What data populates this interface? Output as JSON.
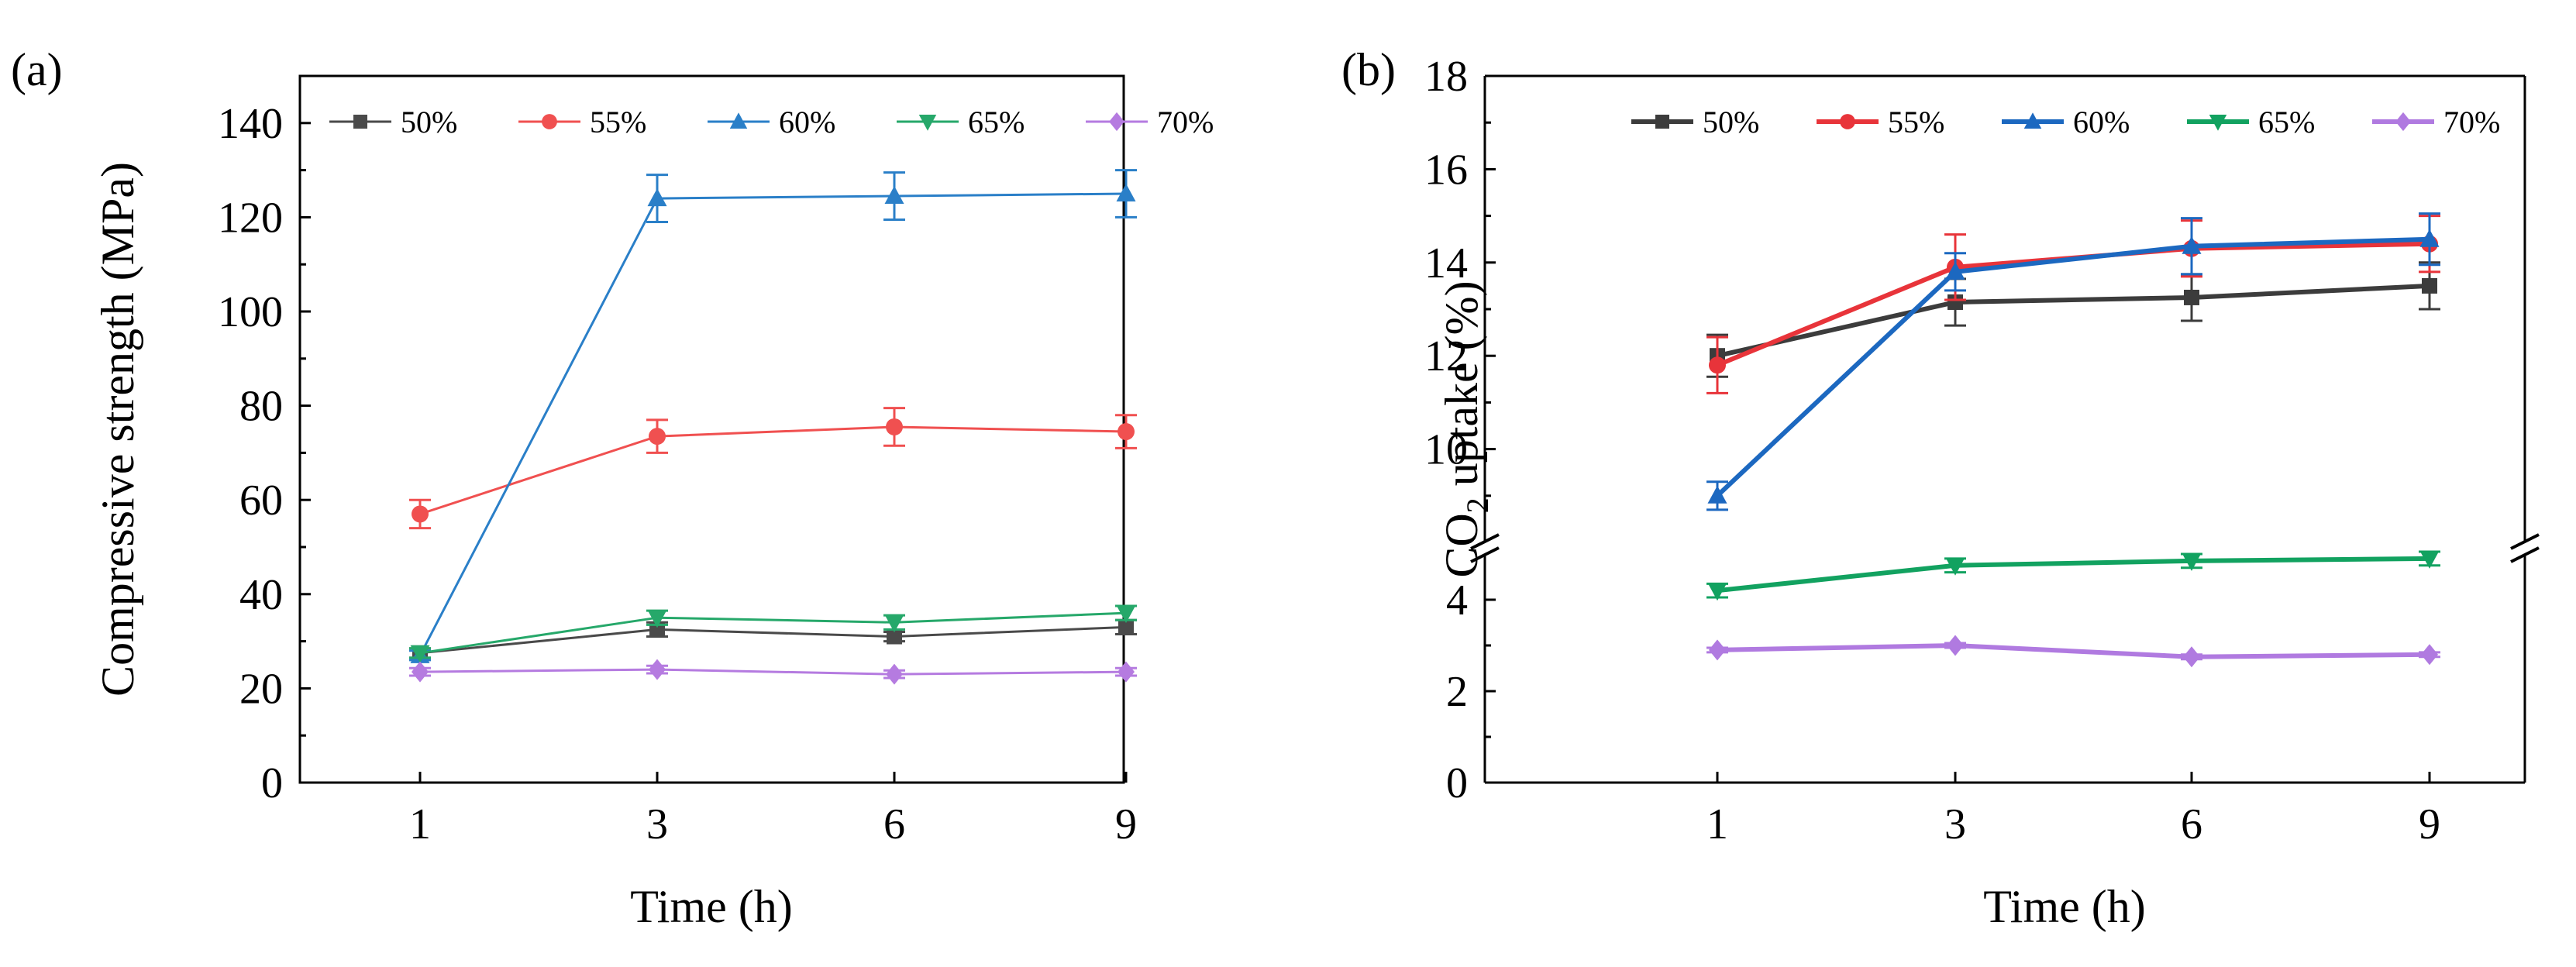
{
  "chart_data": [
    {
      "type": "line",
      "panel_label": "(a)",
      "xlabel": "Time (h)",
      "ylabel": "Compressive strength (MPa)",
      "categories": [
        "1",
        "3",
        "6",
        "9"
      ],
      "ylim": [
        0,
        150
      ],
      "yticks": [
        "0",
        "20",
        "40",
        "60",
        "80",
        "100",
        "120",
        "140"
      ],
      "legend_position": "top",
      "series": [
        {
          "name": "50%",
          "color": "#4a4a4a",
          "marker": "square",
          "values": [
            27.5,
            32.5,
            31.0,
            33.0
          ],
          "errors": [
            1.0,
            1.5,
            1.0,
            1.5
          ]
        },
        {
          "name": "55%",
          "color": "#f05050",
          "marker": "circle",
          "values": [
            57.0,
            73.5,
            75.5,
            74.5
          ],
          "errors": [
            3.0,
            3.5,
            4.0,
            3.5
          ]
        },
        {
          "name": "60%",
          "color": "#2a7fc8",
          "marker": "triangle-up",
          "values": [
            27.0,
            124.0,
            124.5,
            125.0
          ],
          "errors": [
            1.0,
            5.0,
            5.0,
            5.0
          ]
        },
        {
          "name": "65%",
          "color": "#26a86a",
          "marker": "triangle-down",
          "values": [
            27.5,
            35.0,
            34.0,
            36.0
          ],
          "errors": [
            1.0,
            1.5,
            1.5,
            1.5
          ]
        },
        {
          "name": "70%",
          "color": "#b57be0",
          "marker": "diamond",
          "values": [
            23.5,
            24.0,
            23.0,
            23.5
          ],
          "errors": [
            0.8,
            0.8,
            0.8,
            0.8
          ]
        }
      ]
    },
    {
      "type": "line",
      "panel_label": "(b)",
      "xlabel": "Time (h)",
      "ylabel_parts": [
        "CO",
        "2",
        " uptake (%)"
      ],
      "categories": [
        "1",
        "3",
        "6",
        "9"
      ],
      "ylim": [
        0,
        18
      ],
      "axis_break": [
        5,
        8
      ],
      "yticks": [
        "0",
        "2",
        "4",
        "10",
        "12",
        "14",
        "16",
        "18"
      ],
      "legend_position": "top",
      "series": [
        {
          "name": "50%",
          "color": "#3c3c3c",
          "marker": "square",
          "values": [
            12.0,
            13.15,
            13.25,
            13.5
          ],
          "errors": [
            0.45,
            0.5,
            0.5,
            0.5
          ]
        },
        {
          "name": "55%",
          "color": "#e8343a",
          "marker": "circle",
          "values": [
            11.8,
            13.9,
            14.3,
            14.4
          ],
          "errors": [
            0.6,
            0.7,
            0.6,
            0.6
          ]
        },
        {
          "name": "60%",
          "color": "#1c68c0",
          "marker": "triangle-up",
          "values": [
            9.0,
            13.8,
            14.35,
            14.5
          ],
          "errors": [
            0.3,
            0.4,
            0.6,
            0.55
          ]
        },
        {
          "name": "65%",
          "color": "#12a260",
          "marker": "triangle-down",
          "values": [
            4.2,
            4.75,
            4.85,
            4.9
          ],
          "errors": [
            0.15,
            0.15,
            0.15,
            0.15
          ]
        },
        {
          "name": "70%",
          "color": "#b07ae0",
          "marker": "diamond",
          "values": [
            2.9,
            3.0,
            2.75,
            2.8
          ],
          "errors": [
            0.05,
            0.05,
            0.05,
            0.05
          ]
        }
      ]
    }
  ]
}
